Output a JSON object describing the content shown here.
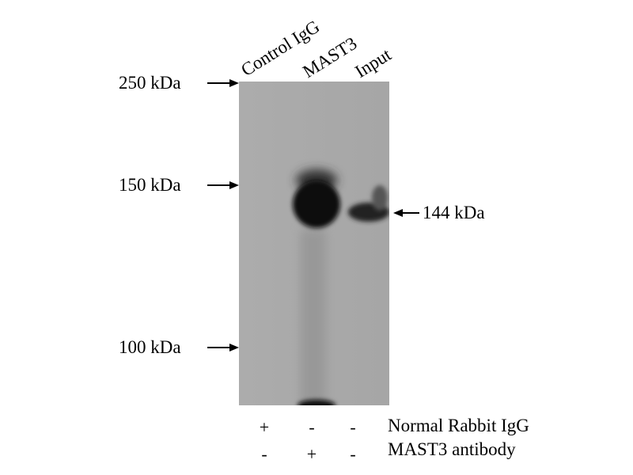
{
  "lanes": [
    "Control IgG",
    "MAST3",
    "Input"
  ],
  "markers": [
    {
      "label": "250 kDa"
    },
    {
      "label": "150 kDa"
    },
    {
      "label": "100 kDa"
    }
  ],
  "band_label": "144 kDa",
  "conditions": [
    {
      "label": "Normal Rabbit IgG",
      "signs": [
        "+",
        "-",
        "-"
      ]
    },
    {
      "label": "MAST3 antibody",
      "signs": [
        "-",
        "+",
        "-"
      ]
    }
  ],
  "colors": {
    "membrane": "#a9a9a9",
    "band": "#0a0a0a"
  }
}
